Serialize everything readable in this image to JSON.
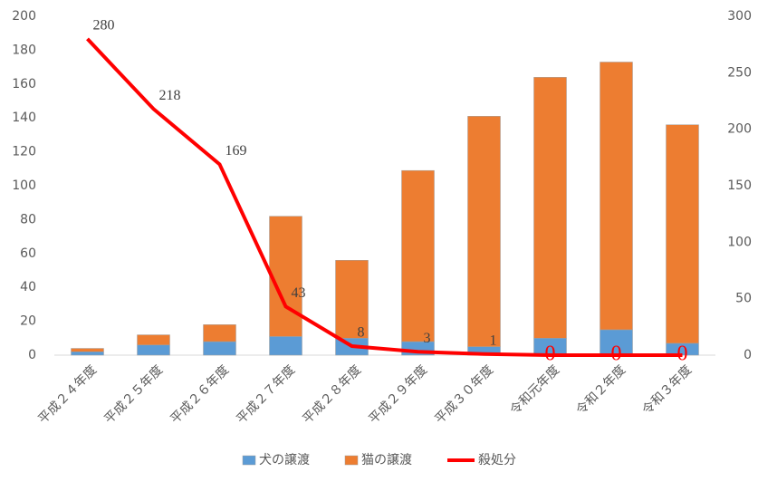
{
  "chart_data": {
    "type": "bar-line",
    "categories": [
      "平成２４年度",
      "平成２５年度",
      "平成２６年度",
      "平成２７年度",
      "平成２８年度",
      "平成２９年度",
      "平成３０年度",
      "令和元年度",
      "令和２年度",
      "令和３年度"
    ],
    "series": [
      {
        "name": "犬の譲渡",
        "type": "bar",
        "color": "#5b9bd5",
        "values": [
          2,
          6,
          8,
          11,
          10,
          8,
          5,
          10,
          15,
          7
        ]
      },
      {
        "name": "猫の譲渡",
        "type": "bar",
        "color": "#ed7d31",
        "values": [
          2,
          6,
          10,
          71,
          46,
          101,
          136,
          154,
          158,
          129
        ]
      },
      {
        "name": "殺処分",
        "type": "line",
        "axis": "y2",
        "color": "#ff0000",
        "values": [
          280,
          218,
          169,
          43,
          8,
          3,
          1,
          0,
          0,
          0
        ]
      }
    ],
    "ylim": [
      0,
      200
    ],
    "yticks": [
      0,
      20,
      40,
      60,
      80,
      100,
      120,
      140,
      160,
      180,
      200
    ],
    "y2lim": [
      0,
      300
    ],
    "y2ticks": [
      0,
      50,
      100,
      150,
      200,
      250,
      300
    ],
    "stacked": true,
    "legend": "bottom"
  }
}
